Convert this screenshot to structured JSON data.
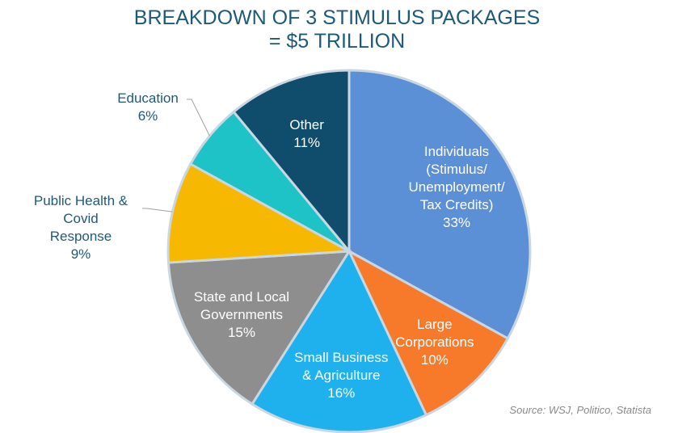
{
  "chart_data": {
    "type": "pie",
    "title": [
      "BREAKDOWN OF 3 STIMULUS PACKAGES",
      "= $5 TRILLION"
    ],
    "categories": [
      "Individuals\n(Stimulus/\nUnemployment/\nTax Credits)",
      "Large\nCorporations",
      "Small Business\n& Agriculture",
      "State and Local\nGovernments",
      "Public Health &\nCovid\nResponse",
      "Education",
      "Other"
    ],
    "values": [
      33,
      10,
      16,
      15,
      9,
      6,
      11
    ],
    "value_labels": [
      "33%",
      "10%",
      "16%",
      "15%",
      "9%",
      "6%",
      "11%"
    ],
    "colors": [
      "#5b8fd6",
      "#f77a2a",
      "#1fb1ee",
      "#8e8e8e",
      "#f6b800",
      "#1ec3c8",
      "#104d6c"
    ],
    "source": "Source: WSJ, Politico, Statista"
  }
}
